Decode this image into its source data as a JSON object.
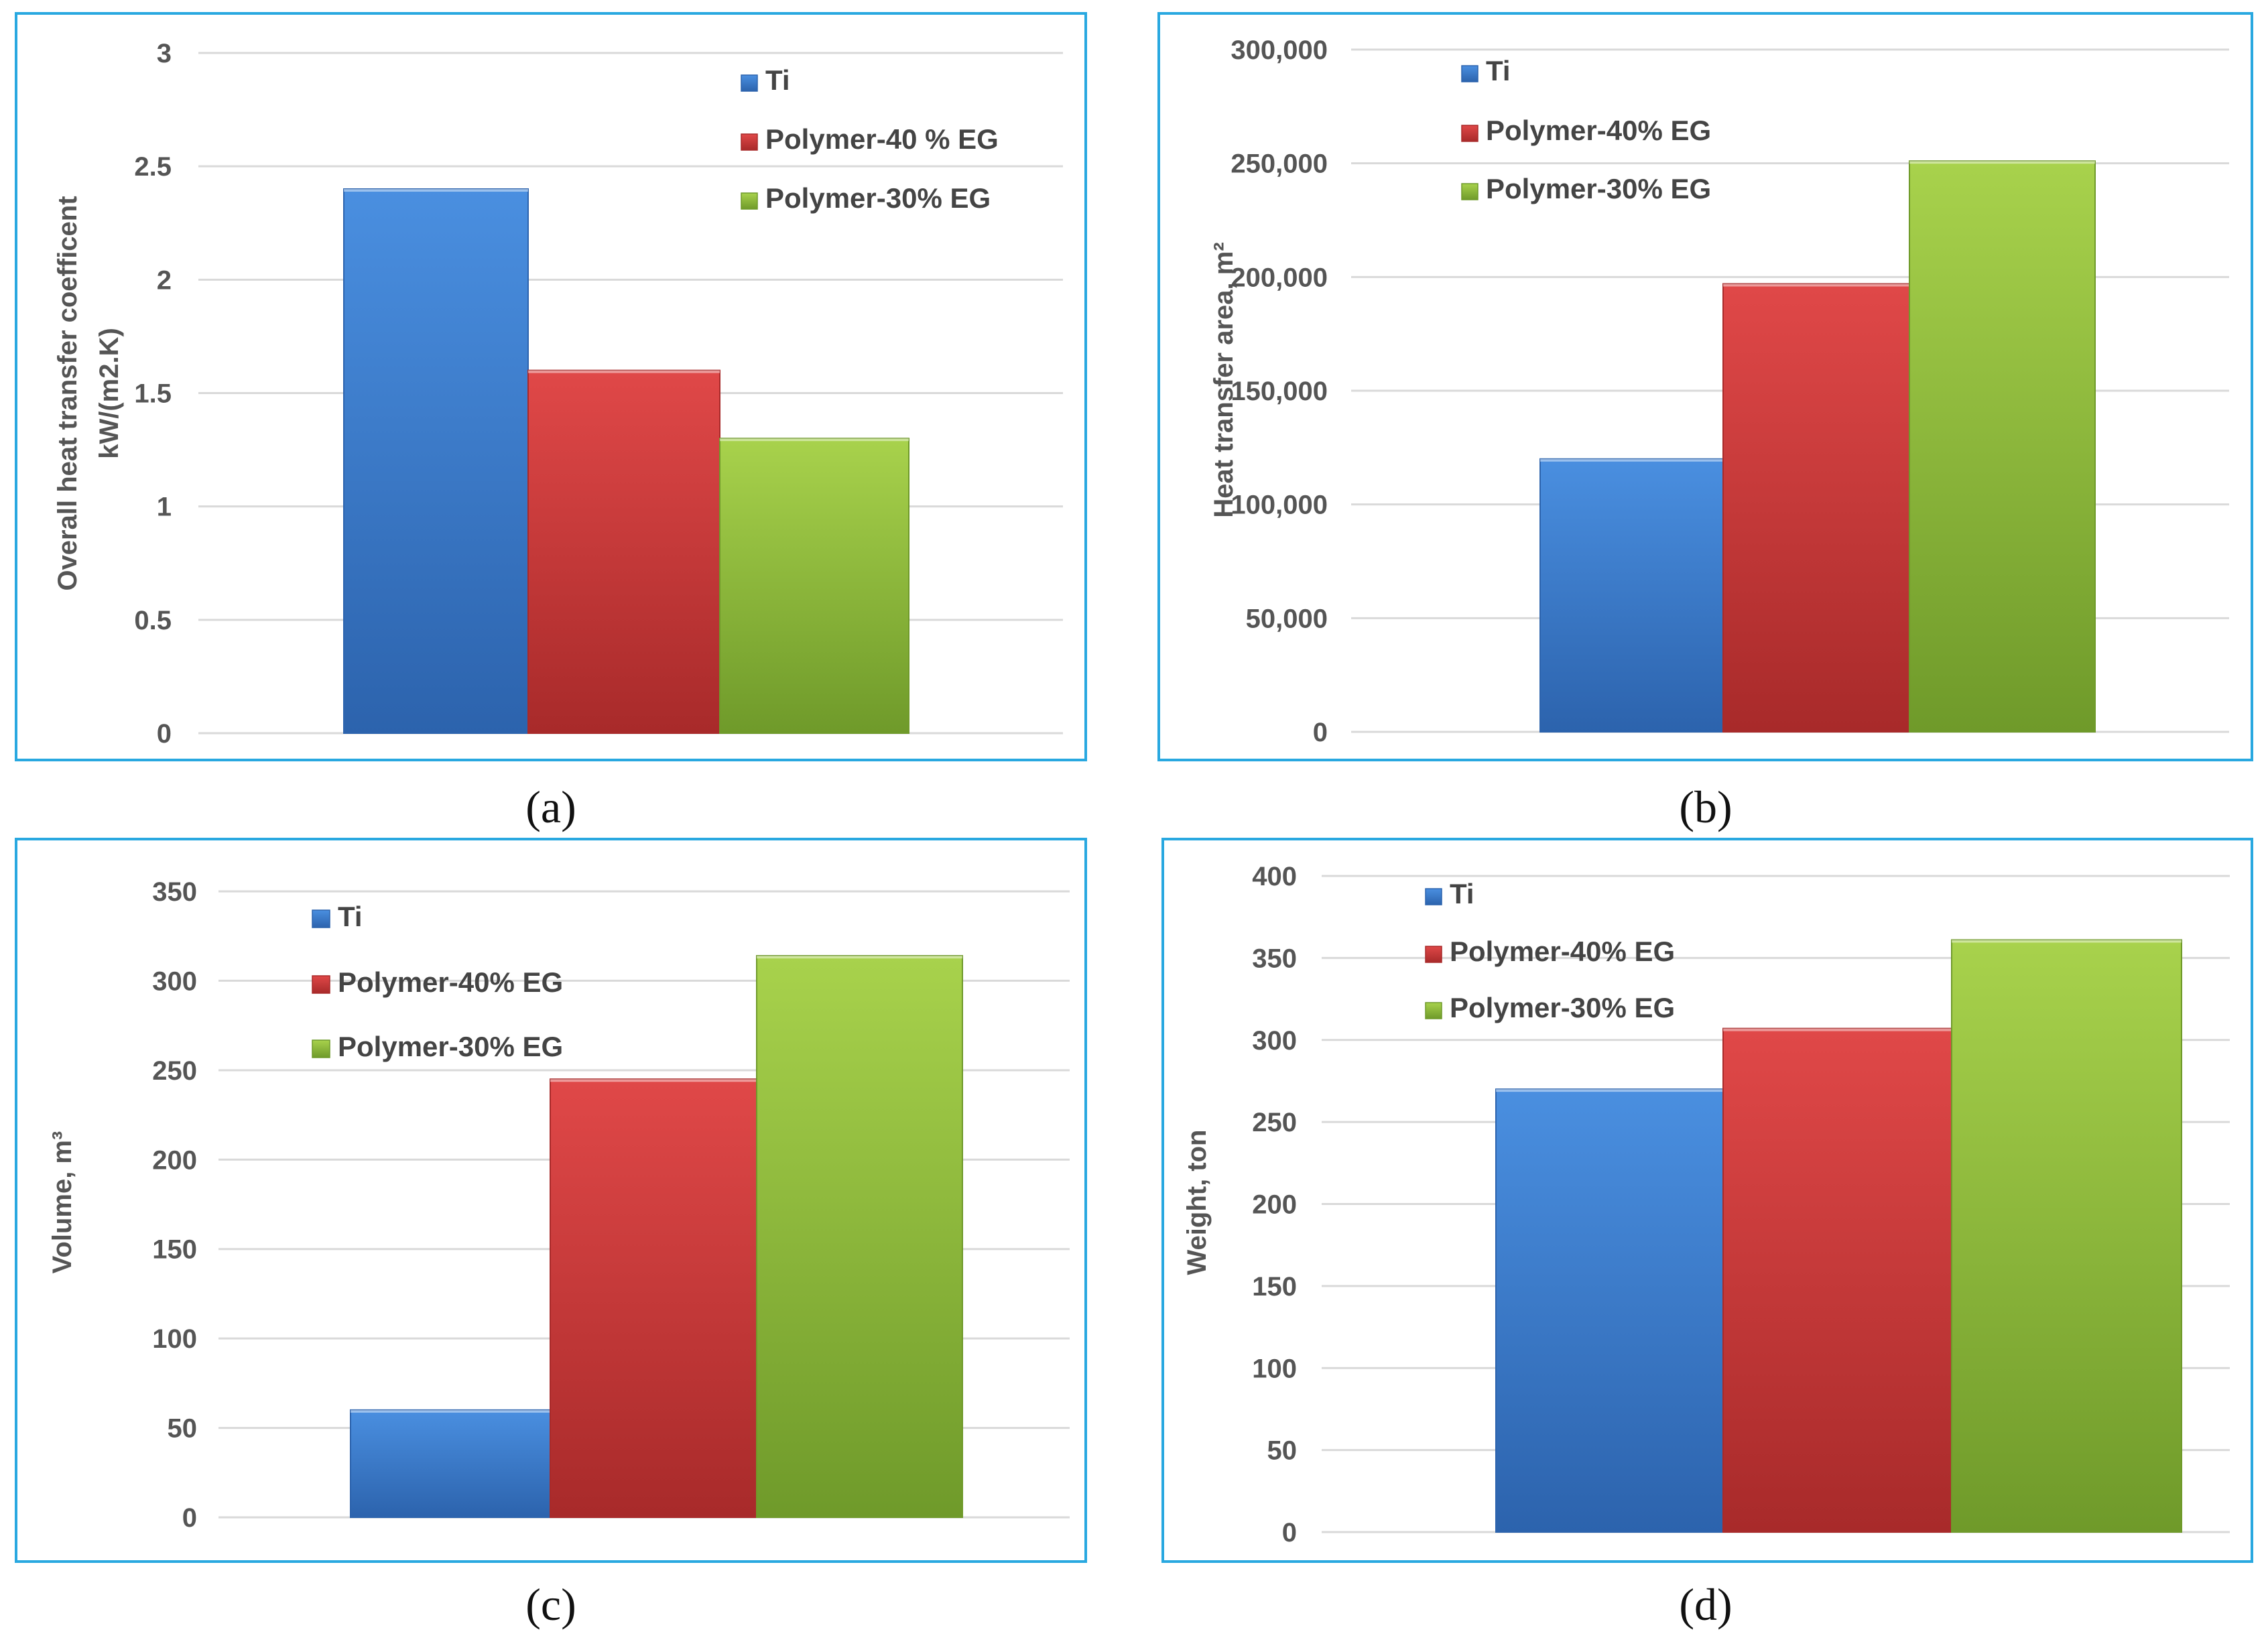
{
  "series_names": [
    "Ti",
    "Polymer-40% EG",
    "Polymer-30% EG"
  ],
  "colors": {
    "ti": "#3a7fd5",
    "p40": "#d23b3b",
    "p30": "#9cc940",
    "grid": "#d9d9d9",
    "border": "#29a8e0"
  },
  "captions": {
    "a": "(a)",
    "b": "(b)",
    "c": "(c)",
    "d": "(d)"
  },
  "chart_data": [
    {
      "id": "a",
      "type": "bar",
      "title": "",
      "ylabel": [
        "Overall heat transfer coefficent",
        "kW/(m2.K)"
      ],
      "legend": [
        "Ti",
        "Polymer-40 % EG",
        "Polymer-30% EG"
      ],
      "categories": [
        ""
      ],
      "series": [
        {
          "name": "Ti",
          "values": [
            2.4
          ]
        },
        {
          "name": "Polymer-40 % EG",
          "values": [
            1.6
          ]
        },
        {
          "name": "Polymer-30% EG",
          "values": [
            1.3
          ]
        }
      ],
      "ylim": [
        0,
        3
      ],
      "yticks": [
        0,
        0.5,
        1,
        1.5,
        2,
        2.5,
        3
      ],
      "ytick_labels": [
        "0",
        "0.5",
        "1",
        "1.5",
        "2",
        "2.5",
        "3"
      ],
      "grid": true
    },
    {
      "id": "b",
      "type": "bar",
      "title": "",
      "ylabel": [
        "Heat transfer area, m²"
      ],
      "legend": [
        "Ti",
        "Polymer-40% EG",
        "Polymer-30% EG"
      ],
      "categories": [
        ""
      ],
      "series": [
        {
          "name": "Ti",
          "values": [
            120000
          ]
        },
        {
          "name": "Polymer-40% EG",
          "values": [
            197000
          ]
        },
        {
          "name": "Polymer-30% EG",
          "values": [
            251000
          ]
        }
      ],
      "ylim": [
        0,
        300000
      ],
      "yticks": [
        0,
        50000,
        100000,
        150000,
        200000,
        250000,
        300000
      ],
      "ytick_labels": [
        "0",
        "50,000",
        "100,000",
        "150,000",
        "200,000",
        "250,000",
        "300,000"
      ],
      "grid": true
    },
    {
      "id": "c",
      "type": "bar",
      "title": "",
      "ylabel": [
        "Volume, m³"
      ],
      "legend": [
        "Ti",
        "Polymer-40% EG",
        "Polymer-30% EG"
      ],
      "categories": [
        ""
      ],
      "series": [
        {
          "name": "Ti",
          "values": [
            60
          ]
        },
        {
          "name": "Polymer-40% EG",
          "values": [
            245
          ]
        },
        {
          "name": "Polymer-30% EG",
          "values": [
            314
          ]
        }
      ],
      "ylim": [
        0,
        350
      ],
      "yticks": [
        0,
        50,
        100,
        150,
        200,
        250,
        300,
        350
      ],
      "ytick_labels": [
        "0",
        "50",
        "100",
        "150",
        "200",
        "250",
        "300",
        "350"
      ],
      "grid": true
    },
    {
      "id": "d",
      "type": "bar",
      "title": "",
      "ylabel": [
        "Weight, ton"
      ],
      "legend": [
        "Ti",
        "Polymer-40% EG",
        "Polymer-30% EG"
      ],
      "categories": [
        ""
      ],
      "series": [
        {
          "name": "Ti",
          "values": [
            270
          ]
        },
        {
          "name": "Polymer-40% EG",
          "values": [
            307
          ]
        },
        {
          "name": "Polymer-30% EG",
          "values": [
            361
          ]
        }
      ],
      "ylim": [
        0,
        400
      ],
      "yticks": [
        0,
        50,
        100,
        150,
        200,
        250,
        300,
        350,
        400
      ],
      "ytick_labels": [
        "0",
        "50",
        "100",
        "150",
        "200",
        "250",
        "300",
        "350",
        "400"
      ],
      "grid": true
    }
  ]
}
